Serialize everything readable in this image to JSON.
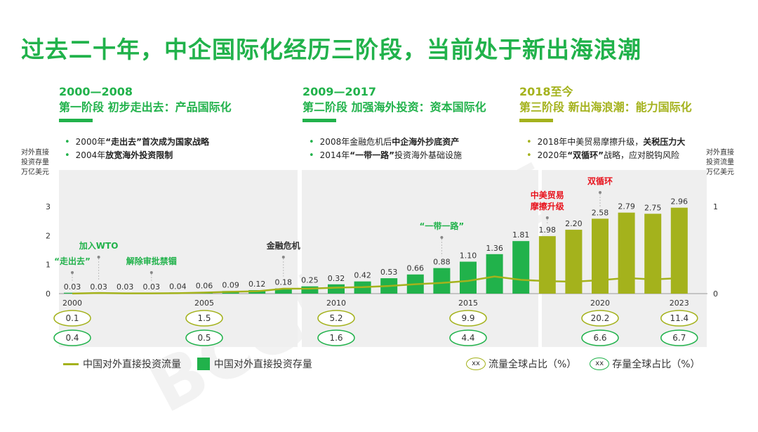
{
  "title": "过去二十年，中企国际化经历三阶段，当前处于新出海浪潮",
  "phases": [
    {
      "years": "2000—2008",
      "name": "第一阶段 初步走出去：产品国际化",
      "color": "#21b24b",
      "bullets": [
        {
          "pre": "2000年",
          "bold": "“走出去”首次成为国家战略",
          "post": ""
        },
        {
          "pre": "2004年",
          "bold": "放宽海外投资限制",
          "post": ""
        }
      ]
    },
    {
      "years": "2009—2017",
      "name": "第二阶段 加强海外投资：资本国际化",
      "color": "#21b24b",
      "bullets": [
        {
          "pre": "2008年金融危机后",
          "bold": "中企海外抄底资产",
          "post": ""
        },
        {
          "pre": "2014年",
          "bold": "“一带一路”",
          "post": "投资海外基础设施"
        }
      ]
    },
    {
      "years": "2018至今",
      "name": "第三阶段 新出海浪潮：能力国际化",
      "color": "#a4b21c",
      "bullets": [
        {
          "pre": "2018年中美贸易摩擦升级，",
          "bold": "关税压力大",
          "post": ""
        },
        {
          "pre": "2020年",
          "bold": "“双循环”",
          "post": "战略，应对脱钩风险"
        }
      ]
    }
  ],
  "left_axis_title": "对外直接\n投资存量\n万亿美元",
  "right_axis_title": "对外直接\n投资流量\n万亿美元",
  "legend": {
    "flow": "中国对外直接投资流量",
    "stock": "中国对外直接投资存量",
    "flow_share": "流量全球占比（%）",
    "stock_share": "存量全球占比（%）",
    "ellipse_text": "xx"
  },
  "watermark": "BCG版权所有",
  "colors": {
    "green": "#21b24b",
    "olive": "#a4b21c",
    "red": "#e8141e",
    "panel": "#efefef"
  },
  "chart_data": {
    "type": "bar+line",
    "categories": [
      "2000",
      "2001",
      "2002",
      "2003",
      "2004",
      "2005",
      "2006",
      "2007",
      "2008",
      "2009",
      "2010",
      "2011",
      "2012",
      "2013",
      "2014",
      "2015",
      "2016",
      "2017",
      "2018",
      "2019",
      "2020",
      "2021",
      "2022",
      "2023"
    ],
    "x_tick_labels": [
      {
        "index": 0,
        "label": "2000"
      },
      {
        "index": 5,
        "label": "2005"
      },
      {
        "index": 10,
        "label": "2010"
      },
      {
        "index": 15,
        "label": "2015"
      },
      {
        "index": 20,
        "label": "2020"
      },
      {
        "index": 23,
        "label": "2023"
      }
    ],
    "y_left_ticks": [
      "0",
      "1",
      "2",
      "3"
    ],
    "y_right_ticks": [
      "0",
      "1"
    ],
    "y_left_range": [
      0,
      3
    ],
    "y_right_range": [
      0,
      1
    ],
    "stock_values": [
      0.03,
      0.03,
      0.03,
      0.03,
      0.04,
      0.06,
      0.09,
      0.12,
      0.18,
      0.25,
      0.32,
      0.42,
      0.53,
      0.66,
      0.88,
      1.1,
      1.36,
      1.81,
      1.98,
      2.2,
      2.58,
      2.79,
      2.75,
      2.96
    ],
    "stock_labels": [
      "0.03",
      "0.03",
      "0.03",
      "0.03",
      "0.04",
      "0.06",
      "0.09",
      "0.12",
      "0.18",
      "0.25",
      "0.32",
      "0.42",
      "0.53",
      "0.66",
      "0.88",
      "1.10",
      "1.36",
      "1.81",
      "1.98",
      "2.20",
      "2.58",
      "2.79",
      "2.75",
      "2.96"
    ],
    "flow_values": [
      0.001,
      0.007,
      0.003,
      0.003,
      0.005,
      0.012,
      0.021,
      0.027,
      0.056,
      0.057,
      0.069,
      0.075,
      0.088,
      0.108,
      0.123,
      0.146,
      0.196,
      0.158,
      0.143,
      0.137,
      0.154,
      0.179,
      0.163,
      0.177
    ],
    "flow_share": [
      {
        "index": 0,
        "label": "0.1"
      },
      {
        "index": 5,
        "label": "1.5"
      },
      {
        "index": 10,
        "label": "5.2"
      },
      {
        "index": 15,
        "label": "9.9"
      },
      {
        "index": 20,
        "label": "20.2"
      },
      {
        "index": 23,
        "label": "11.4"
      }
    ],
    "stock_share": [
      {
        "index": 0,
        "label": "0.4"
      },
      {
        "index": 5,
        "label": "0.5"
      },
      {
        "index": 10,
        "label": "1.6"
      },
      {
        "index": 15,
        "label": "4.4"
      },
      {
        "index": 20,
        "label": "6.6"
      },
      {
        "index": 23,
        "label": "6.7"
      }
    ],
    "annotations": [
      {
        "index": 0,
        "text": "“走出去”",
        "color": "#21b24b",
        "level": 1
      },
      {
        "index": 1,
        "text": "加入WTO",
        "color": "#21b24b",
        "level": 2
      },
      {
        "index": 3,
        "text": "解除审批禁锢",
        "color": "#21b24b",
        "level": 1
      },
      {
        "index": 8,
        "text": "金融危机",
        "color": "#333333",
        "level": 2
      },
      {
        "index": 14,
        "text": "“一带一路”",
        "color": "#21b24b",
        "level": 3
      },
      {
        "index": 18,
        "text": "中美贸易\n摩擦升级",
        "color": "#e8141e",
        "level": 4
      },
      {
        "index": 20,
        "text": "双循环",
        "color": "#e8141e",
        "level": 5
      }
    ]
  }
}
